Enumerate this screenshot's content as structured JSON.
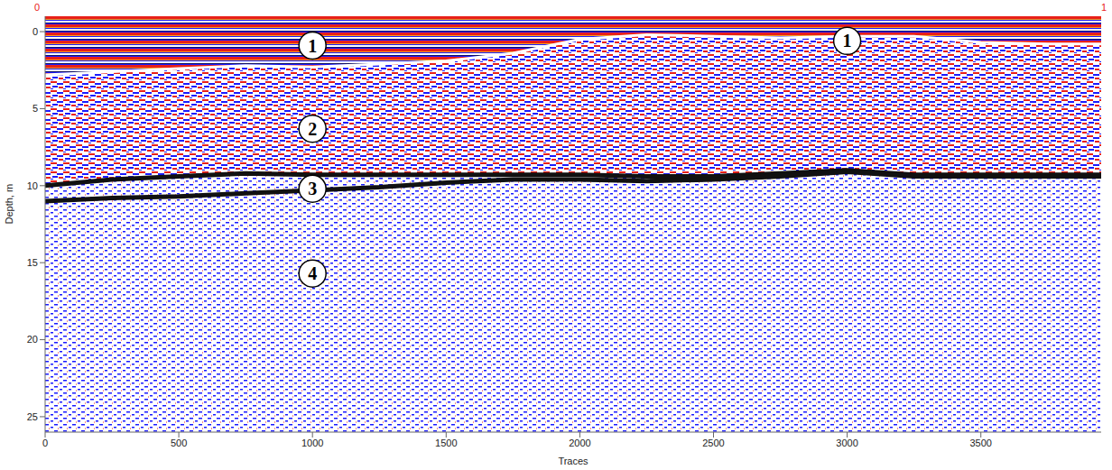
{
  "chart_data": {
    "type": "line",
    "x_label": "Traces",
    "y_label": "Depth, m",
    "top_labels": [
      "0",
      "1"
    ],
    "x": [
      0,
      250,
      500,
      750,
      1000,
      1250,
      1500,
      1750,
      2000,
      2250,
      2500,
      2750,
      3000,
      3250,
      3500,
      3750,
      3950
    ],
    "xlim": [
      0,
      3950
    ],
    "xticks": [
      0,
      500,
      1000,
      1500,
      2000,
      2500,
      3000,
      3500
    ],
    "ylim": [
      -1,
      26
    ],
    "yticks": [
      0,
      5,
      10,
      15,
      20,
      25
    ],
    "series": [
      {
        "color": "#ffffff",
        "values": [
          2.8,
          2.6,
          2.4,
          2.2,
          2.3,
          2.1,
          1.9,
          1.4,
          0.5,
          0.2,
          0.3,
          0.4,
          0.3,
          0.3,
          0.7,
          0.8,
          0.8
        ]
      },
      {
        "color": "#111111",
        "values": [
          10.0,
          9.6,
          9.4,
          9.2,
          9.3,
          9.3,
          9.3,
          9.3,
          9.3,
          9.4,
          9.4,
          9.2,
          9.0,
          9.3,
          9.3,
          9.3,
          9.3
        ]
      },
      {
        "color": "#111111",
        "values": [
          11.0,
          10.8,
          10.7,
          10.5,
          10.3,
          10.1,
          9.8,
          9.6,
          9.6,
          9.7,
          9.6,
          9.4,
          9.1,
          9.4,
          9.4,
          9.4,
          9.4
        ]
      }
    ],
    "annotations": [
      {
        "text": "1",
        "x": 1000,
        "y": 0.9
      },
      {
        "text": "1",
        "x": 3000,
        "y": 0.6
      },
      {
        "text": "2",
        "x": 1000,
        "y": 6.3
      },
      {
        "text": "3",
        "x": 1000,
        "y": 10.2
      },
      {
        "text": "4",
        "x": 1000,
        "y": 15.7
      }
    ]
  }
}
